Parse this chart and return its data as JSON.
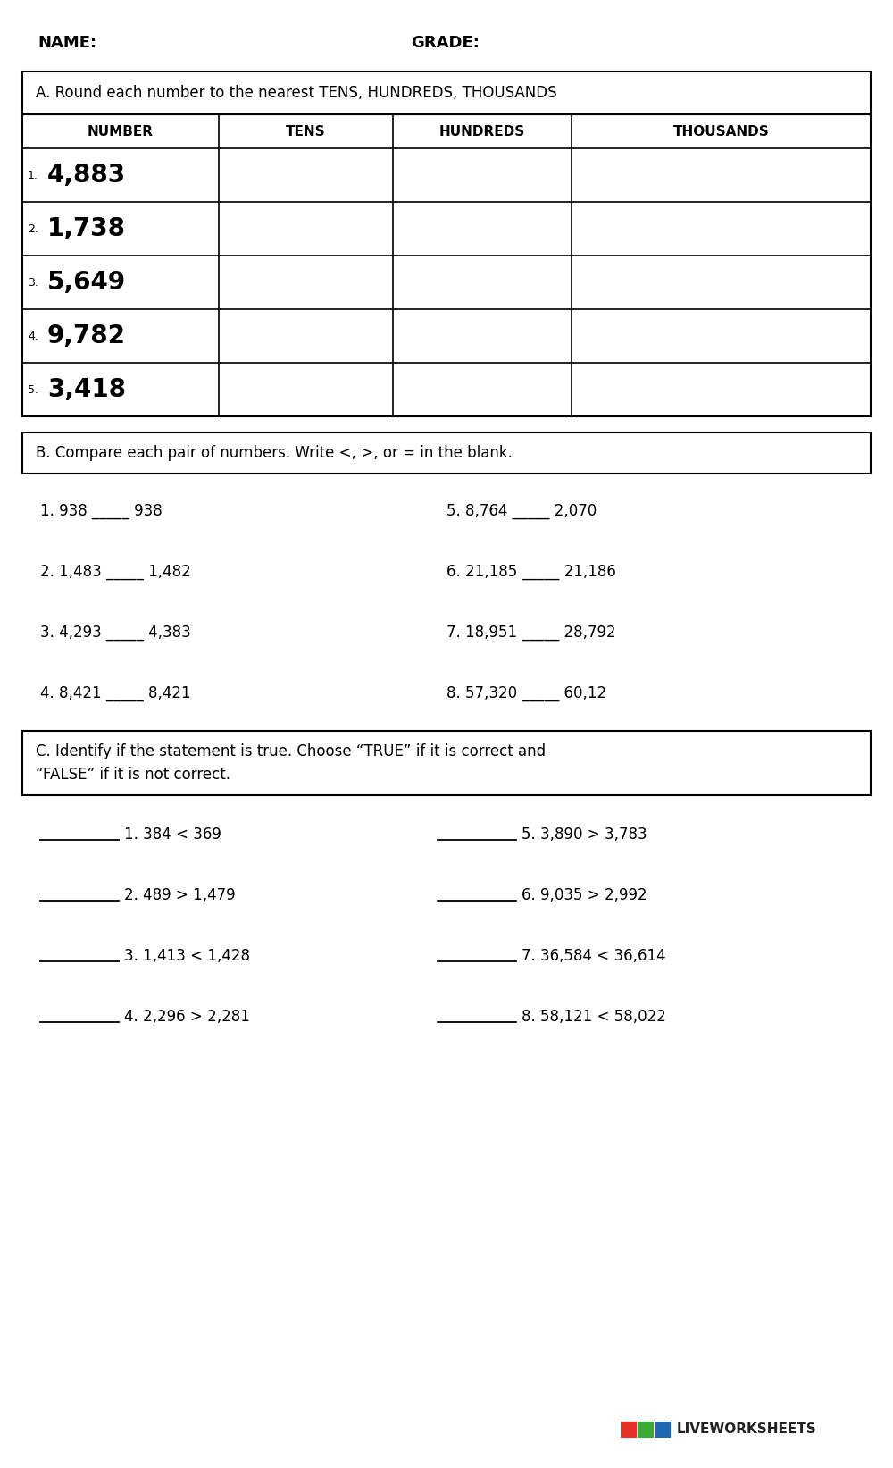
{
  "bg_color": "#ffffff",
  "text_color": "#000000",
  "name_label": "NAME:",
  "grade_label": "GRADE:",
  "section_a_title": "A. Round each number to the nearest TENS, HUNDREDS, THOUSANDS",
  "table_headers": [
    "NUMBER",
    "TENS",
    "HUNDREDS",
    "THOUSANDS"
  ],
  "table_numbers": [
    "1. 4,883",
    "2. 1,738",
    "3. 5,649",
    "4. 9,782",
    "5. 3,418"
  ],
  "section_b_title": "B. Compare each pair of numbers. Write <, >, or = in the blank.",
  "compare_left": [
    "1. 938 _____ 938",
    "2. 1,483 _____ 1,482",
    "3. 4,293 _____ 4,383",
    "4. 8,421 _____ 8,421"
  ],
  "compare_right": [
    "5. 8,764 _____ 2,070",
    "6. 21,185 _____ 21,186",
    "7. 18,951 _____ 28,792",
    "8. 57,320 _____ 60,12"
  ],
  "section_c_title_line1": "C. Identify if the statement is true. Choose “TRUE” if it is correct and",
  "section_c_title_line2": "“FALSE” if it is not correct.",
  "true_false_left": [
    "1. 384 < 369",
    "2. 489 > 1,479",
    "3. 1,413 < 1,428",
    "4. 2,296 > 2,281"
  ],
  "true_false_right": [
    "5. 3,890 > 3,783",
    "6. 9,035 > 2,992",
    "7. 36,584 < 36,614",
    "8. 58,121 < 58,022"
  ],
  "lw_colors": [
    "#e8312a",
    "#3aaa35",
    "#1e69b3"
  ]
}
